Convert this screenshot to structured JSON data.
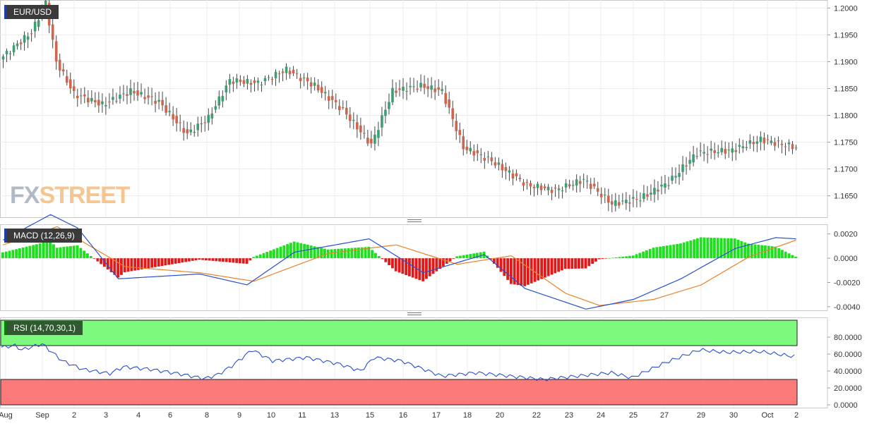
{
  "header": {
    "symbol": "EUR/USD"
  },
  "logo": {
    "part1": "FX",
    "part2": "STREET"
  },
  "colors": {
    "up": "#3d9e73",
    "down": "#d0654e",
    "macd_line": "#2a4fcf",
    "signal_line": "#e8822a",
    "hist_pos": "#1ee01e",
    "hist_neg": "#e01a1a",
    "rsi_line": "#2a4fcf",
    "rsi_overbought_zone": "#7dfa7d",
    "rsi_oversold_zone": "#fa7a7a"
  },
  "chart_data": [
    {
      "type": "candlestick",
      "title": "EUR/USD",
      "ylim": [
        1.161,
        1.2015
      ],
      "y_ticks": [
        "1.2000",
        "1.1950",
        "1.1900",
        "1.1850",
        "1.1800",
        "1.1750",
        "1.1700",
        "1.1650"
      ],
      "x_ticks": [
        "Aug",
        "Sep",
        "2",
        "3",
        "4",
        "6",
        "8",
        "9",
        "10",
        "11",
        "13",
        "15",
        "16",
        "17",
        "18",
        "20",
        "22",
        "23",
        "24",
        "25",
        "27",
        "29",
        "30",
        "Oct",
        "2"
      ],
      "close_anchors": [
        [
          0,
          1.191
        ],
        [
          8,
          1.1955
        ],
        [
          12,
          1.201
        ],
        [
          15,
          1.19
        ],
        [
          20,
          1.184
        ],
        [
          28,
          1.182
        ],
        [
          36,
          1.1845
        ],
        [
          44,
          1.1825
        ],
        [
          52,
          1.1765
        ],
        [
          58,
          1.1795
        ],
        [
          64,
          1.1865
        ],
        [
          72,
          1.186
        ],
        [
          80,
          1.1885
        ],
        [
          88,
          1.1855
        ],
        [
          96,
          1.181
        ],
        [
          104,
          1.1745
        ],
        [
          110,
          1.1845
        ],
        [
          118,
          1.1855
        ],
        [
          124,
          1.1845
        ],
        [
          130,
          1.174
        ],
        [
          138,
          1.1715
        ],
        [
          148,
          1.167
        ],
        [
          156,
          1.166
        ],
        [
          164,
          1.168
        ],
        [
          172,
          1.1635
        ],
        [
          180,
          1.1645
        ],
        [
          188,
          1.1675
        ],
        [
          196,
          1.173
        ],
        [
          206,
          1.1735
        ],
        [
          214,
          1.1755
        ],
        [
          224,
          1.174
        ]
      ],
      "bar_count": 225
    },
    {
      "type": "line",
      "title": "MACD (12,26,9)",
      "ylim": [
        -0.0043,
        0.0028
      ],
      "y_ticks": [
        "0.0020",
        "0.0000",
        "-0.0020",
        "-0.0040"
      ],
      "macd_anchors": [
        [
          0,
          0.0015
        ],
        [
          14,
          0.0036
        ],
        [
          22,
          0.0025
        ],
        [
          34,
          -0.0017
        ],
        [
          58,
          -0.0013
        ],
        [
          72,
          -0.0022
        ],
        [
          86,
          0.0005
        ],
        [
          108,
          0.0016
        ],
        [
          124,
          -0.0012
        ],
        [
          142,
          0.0003
        ],
        [
          154,
          -0.0025
        ],
        [
          172,
          -0.0042
        ],
        [
          186,
          -0.0034
        ],
        [
          200,
          -0.0017
        ],
        [
          216,
          0.0008
        ],
        [
          228,
          0.0017
        ],
        [
          234,
          0.0016
        ]
      ],
      "signal_anchors": [
        [
          0,
          0.0011
        ],
        [
          16,
          0.0026
        ],
        [
          36,
          -0.0007
        ],
        [
          58,
          -0.0012
        ],
        [
          74,
          -0.0019
        ],
        [
          96,
          0.0004
        ],
        [
          116,
          0.0011
        ],
        [
          134,
          -0.0005
        ],
        [
          150,
          0.0002
        ],
        [
          166,
          -0.0029
        ],
        [
          176,
          -0.0039
        ],
        [
          192,
          -0.0034
        ],
        [
          206,
          -0.0022
        ],
        [
          220,
          0.0001
        ],
        [
          234,
          0.0015
        ]
      ]
    },
    {
      "type": "line",
      "title": "RSI (14,70,30,1)",
      "ylim": [
        0,
        100
      ],
      "y_ticks": [
        "80.0000",
        "60.0000",
        "40.0000",
        "20.0000",
        "0.0000"
      ],
      "overbought": 70,
      "oversold": 30,
      "rsi_anchors": [
        [
          0,
          68
        ],
        [
          4,
          70
        ],
        [
          6,
          65
        ],
        [
          12,
          72
        ],
        [
          18,
          52
        ],
        [
          24,
          42
        ],
        [
          32,
          37
        ],
        [
          36,
          45
        ],
        [
          44,
          42
        ],
        [
          52,
          37
        ],
        [
          60,
          31
        ],
        [
          64,
          36
        ],
        [
          68,
          46
        ],
        [
          74,
          65
        ],
        [
          80,
          52
        ],
        [
          90,
          56
        ],
        [
          100,
          48
        ],
        [
          106,
          40
        ],
        [
          110,
          56
        ],
        [
          118,
          52
        ],
        [
          130,
          34
        ],
        [
          140,
          38
        ],
        [
          160,
          30
        ],
        [
          170,
          34
        ],
        [
          180,
          38
        ],
        [
          186,
          32
        ],
        [
          196,
          50
        ],
        [
          206,
          65
        ],
        [
          214,
          62
        ],
        [
          224,
          63
        ],
        [
          234,
          57
        ]
      ]
    }
  ]
}
